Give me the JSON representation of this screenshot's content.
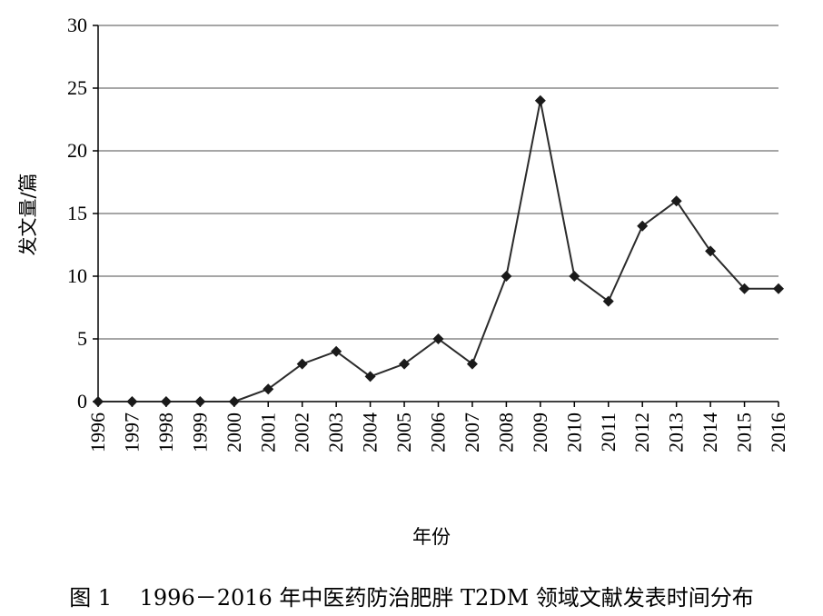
{
  "chart_data": {
    "type": "line",
    "title": "",
    "caption": "图 1    1996－2016 年中医药防治肥胖 T2DM 领域文献发表时间分布",
    "xlabel": "年份",
    "ylabel": "发文量/篇",
    "categories": [
      "1996",
      "1997",
      "1998",
      "1999",
      "2000",
      "2001",
      "2002",
      "2003",
      "2004",
      "2005",
      "2006",
      "2007",
      "2008",
      "2009",
      "2010",
      "2011",
      "2012",
      "2013",
      "2014",
      "2015",
      "2016"
    ],
    "series": [
      {
        "values": [
          0,
          0,
          0,
          0,
          0,
          1,
          3,
          4,
          2,
          3,
          5,
          3,
          10,
          24,
          10,
          8,
          14,
          16,
          12,
          9,
          9
        ]
      }
    ],
    "ylim": [
      0,
      30
    ],
    "yticks": [
      0,
      5,
      10,
      15,
      20,
      25,
      30
    ],
    "grid": true,
    "legend": "none",
    "marker": "diamond",
    "colors": {
      "line": "#2b2b2b",
      "grid": "#a6a6a6",
      "axis": "#000000",
      "marker": "#1a1a1a"
    }
  }
}
